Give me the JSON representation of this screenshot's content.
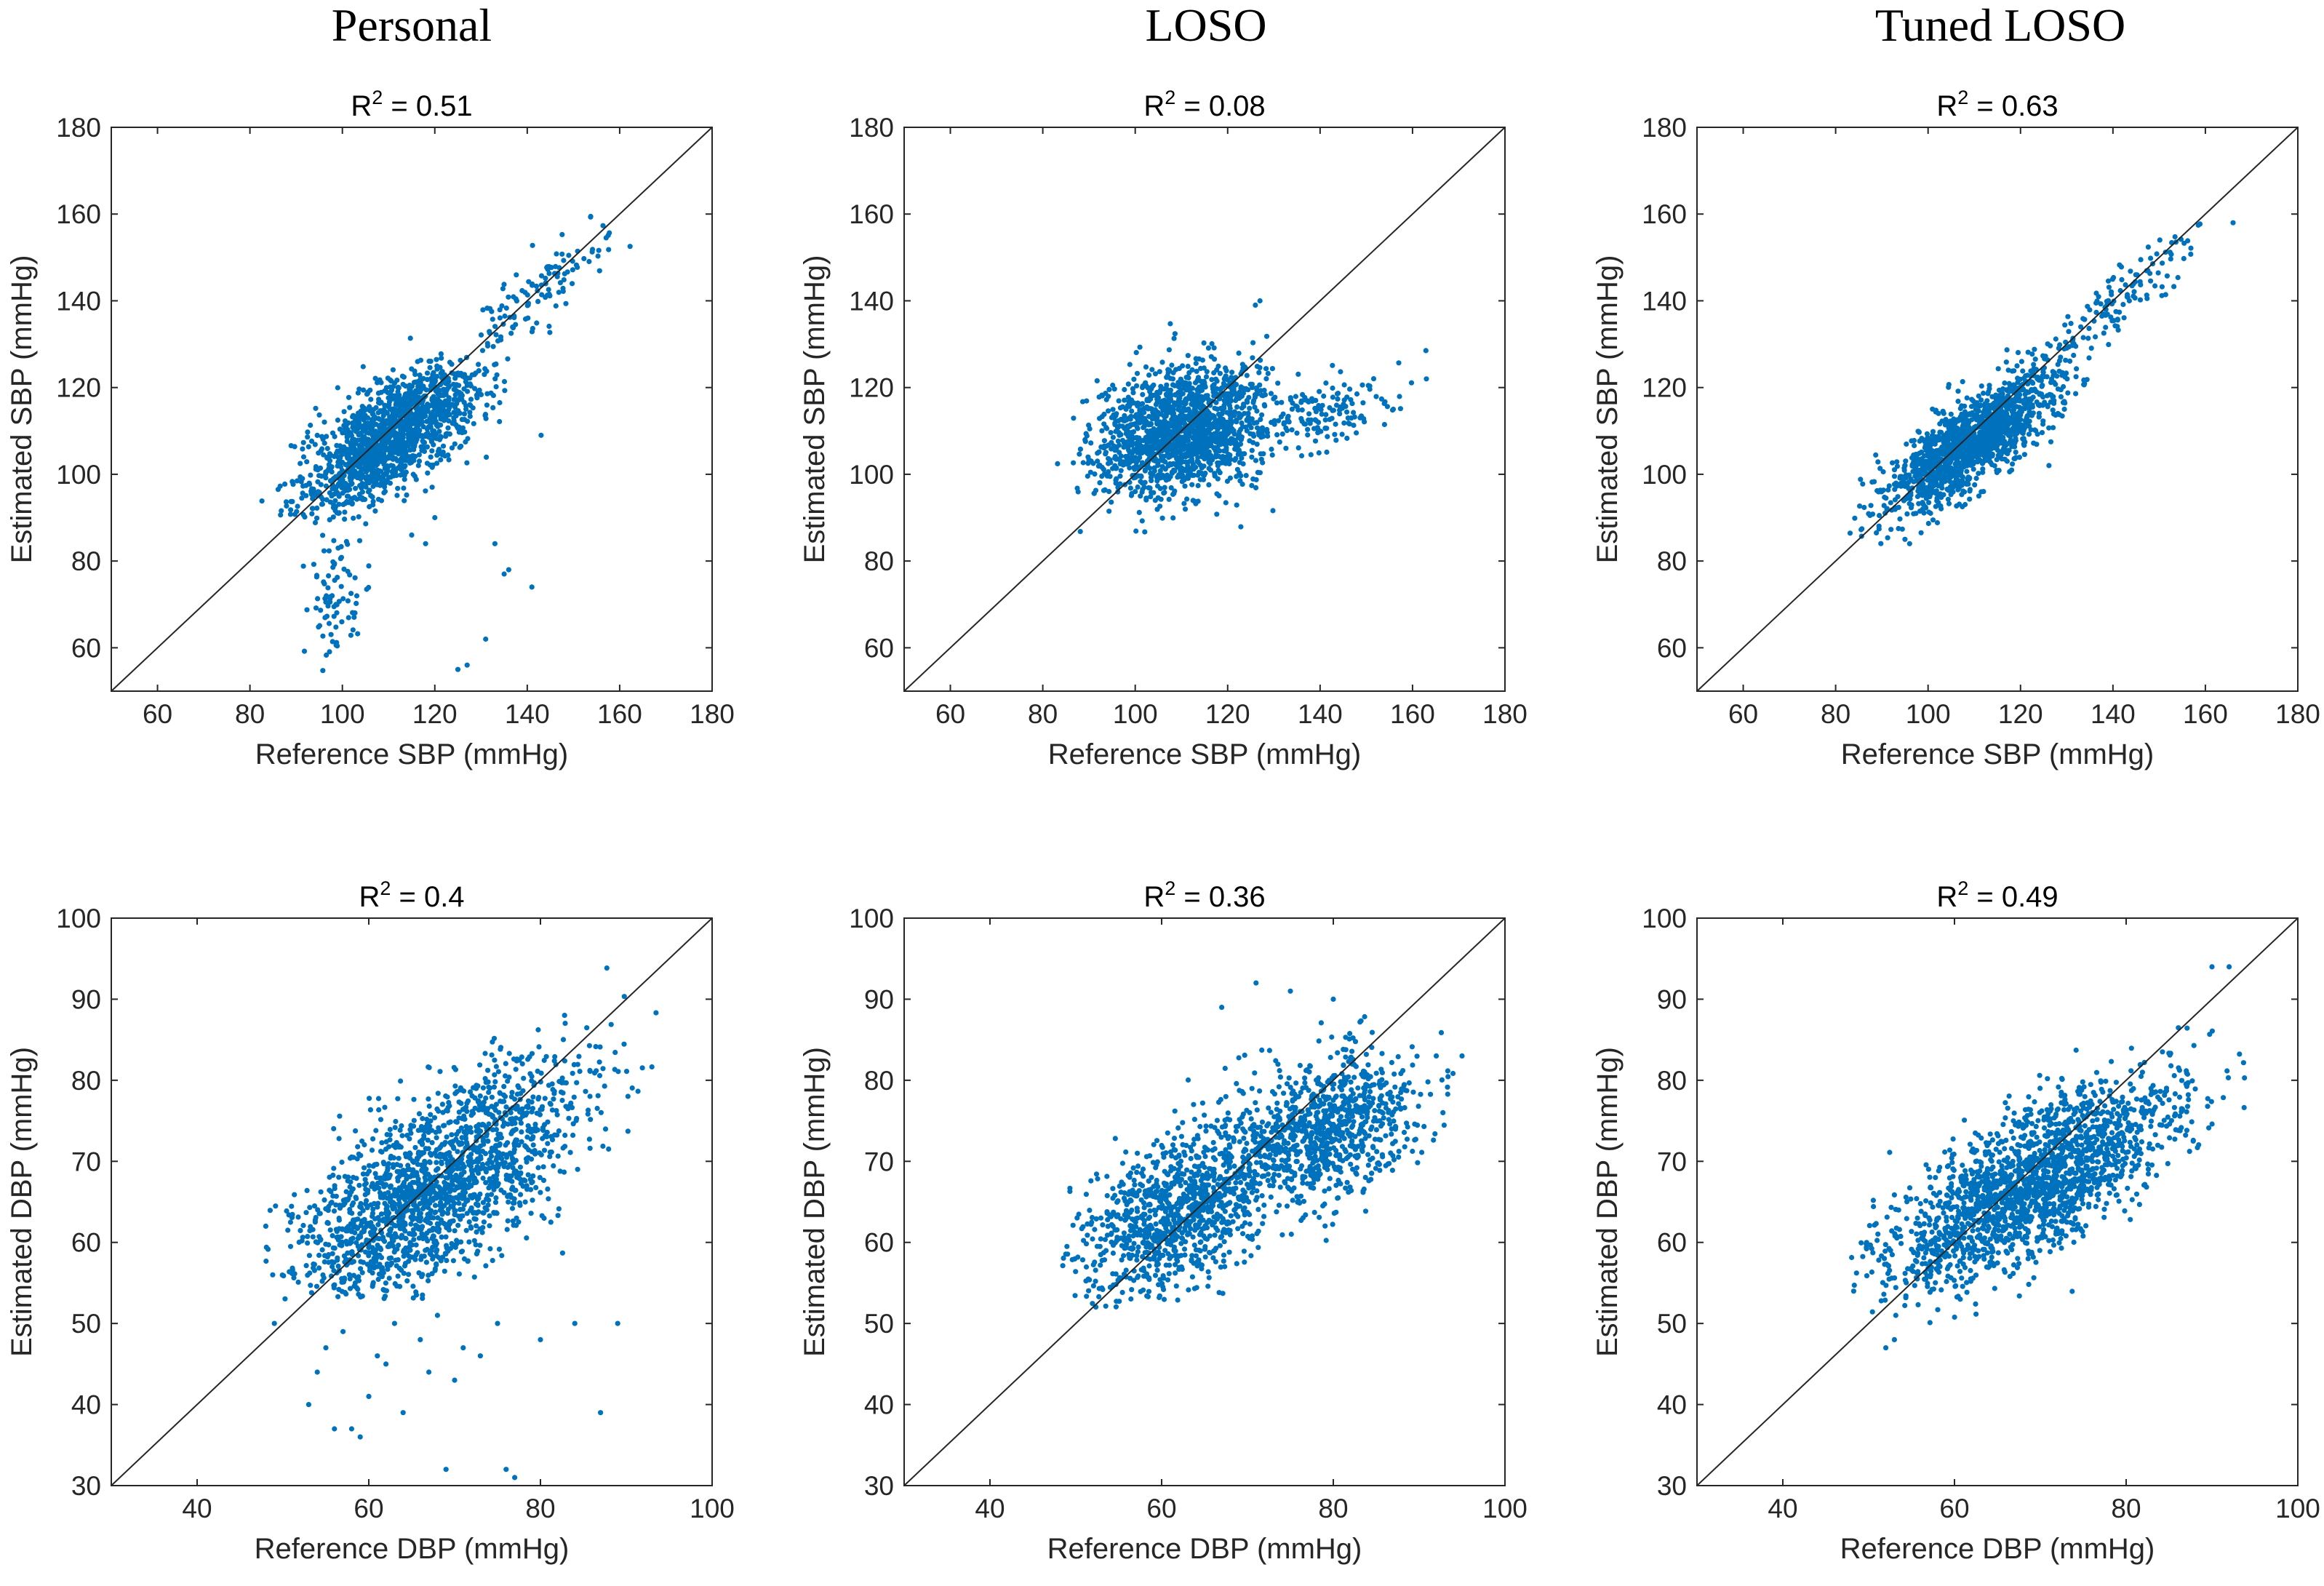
{
  "figure": {
    "column_titles": [
      "Personal",
      "LOSO",
      "Tuned LOSO"
    ],
    "point_color": "#0072bd",
    "line_color": "#262626"
  },
  "chart_data": [
    {
      "type": "scatter",
      "row": "SBP",
      "column": "Personal",
      "title": "R² = 0.51",
      "title_base": "R",
      "title_sup": "2",
      "title_rest": " = 0.51",
      "xlabel": "Reference SBP (mmHg)",
      "ylabel": "Estimated SBP (mmHg)",
      "xlim": [
        50,
        180
      ],
      "ylim": [
        50,
        180
      ],
      "xticks": [
        60,
        80,
        100,
        120,
        140,
        160,
        180
      ],
      "yticks": [
        60,
        80,
        100,
        120,
        140,
        160,
        180
      ],
      "identity_line": true,
      "r_squared": 0.51,
      "clusters": [
        {
          "cx": 111,
          "cy": 109,
          "sx": 9,
          "r": 0.62,
          "slope": 0.58,
          "sres": 6,
          "n": 1500,
          "xmin": 82,
          "xmax": 136,
          "ymin": 86,
          "ymax": 134
        },
        {
          "cx": 143,
          "cy": 143,
          "sx": 8,
          "r": 0.6,
          "slope": 0.8,
          "sres": 5,
          "n": 110,
          "xmin": 130,
          "xmax": 163,
          "ymin": 128,
          "ymax": 160
        },
        {
          "cx": 98,
          "cy": 72,
          "sx": 3,
          "r": 0.0,
          "slope": 0,
          "sres": 8,
          "n": 80,
          "xmin": 91,
          "xmax": 108,
          "ymin": 53,
          "ymax": 90
        }
      ],
      "outliers": [
        [
          127,
          56
        ],
        [
          125,
          55
        ],
        [
          131,
          62
        ],
        [
          135,
          77
        ],
        [
          136,
          78
        ],
        [
          141,
          74
        ],
        [
          133,
          84
        ],
        [
          118,
          84
        ],
        [
          143,
          109
        ],
        [
          120,
          90
        ],
        [
          115,
          86
        ]
      ]
    },
    {
      "type": "scatter",
      "row": "SBP",
      "column": "LOSO",
      "title": "R² = 0.08",
      "title_base": "R",
      "title_sup": "2",
      "title_rest": " = 0.08",
      "xlabel": "Reference SBP (mmHg)",
      "ylabel": "Estimated SBP (mmHg)",
      "xlim": [
        50,
        180
      ],
      "ylim": [
        50,
        180
      ],
      "xticks": [
        60,
        80,
        100,
        120,
        140,
        160,
        180
      ],
      "yticks": [
        60,
        80,
        100,
        120,
        140,
        160,
        180
      ],
      "identity_line": true,
      "r_squared": 0.08,
      "clusters": [
        {
          "cx": 110,
          "cy": 110,
          "sx": 9,
          "r": 0.25,
          "slope": 0.22,
          "sres": 7,
          "n": 1600,
          "xmin": 83,
          "xmax": 130,
          "ymin": 86,
          "ymax": 138
        },
        {
          "cx": 140,
          "cy": 114,
          "sx": 9,
          "r": 0.4,
          "slope": 0.2,
          "sres": 4,
          "n": 160,
          "xmin": 125,
          "xmax": 164,
          "ymin": 102,
          "ymax": 130
        }
      ],
      "outliers": [
        [
          127,
          140
        ],
        [
          126,
          139
        ],
        [
          163,
          122
        ]
      ]
    },
    {
      "type": "scatter",
      "row": "SBP",
      "column": "Tuned LOSO",
      "title": "R² = 0.63",
      "title_base": "R",
      "title_sup": "2",
      "title_rest": " = 0.63",
      "xlabel": "Reference SBP (mmHg)",
      "ylabel": "Estimated SBP (mmHg)",
      "xlim": [
        50,
        180
      ],
      "ylim": [
        50,
        180
      ],
      "xticks": [
        60,
        80,
        100,
        120,
        140,
        160,
        180
      ],
      "yticks": [
        60,
        80,
        100,
        120,
        140,
        160,
        180
      ],
      "identity_line": true,
      "r_squared": 0.63,
      "clusters": [
        {
          "cx": 110,
          "cy": 108,
          "sx": 9,
          "r": 0.78,
          "slope": 0.72,
          "sres": 5,
          "n": 1600,
          "xmin": 82,
          "xmax": 135,
          "ymin": 84,
          "ymax": 136
        },
        {
          "cx": 143,
          "cy": 142,
          "sx": 8,
          "r": 0.7,
          "slope": 0.85,
          "sres": 4,
          "n": 120,
          "xmin": 128,
          "xmax": 166,
          "ymin": 126,
          "ymax": 160
        }
      ],
      "outliers": [
        [
          96,
          84
        ],
        [
          95,
          85
        ],
        [
          166,
          158
        ]
      ]
    },
    {
      "type": "scatter",
      "row": "DBP",
      "column": "Personal",
      "title": "R² = 0.4",
      "title_base": "R",
      "title_sup": "2",
      "title_rest": " = 0.4",
      "xlabel": "Reference DBP (mmHg)",
      "ylabel": "Estimated DBP (mmHg)",
      "xlim": [
        30,
        100
      ],
      "ylim": [
        30,
        100
      ],
      "xticks": [
        40,
        60,
        80,
        100
      ],
      "yticks": [
        30,
        40,
        50,
        60,
        70,
        80,
        90,
        100
      ],
      "identity_line": true,
      "r_squared": 0.4,
      "clusters": [
        {
          "cx": 68,
          "cy": 67,
          "sx": 8.5,
          "r": 0.63,
          "slope": 0.6,
          "sres": 5.5,
          "n": 1800,
          "xmin": 48,
          "xmax": 94,
          "ymin": 53,
          "ymax": 94
        }
      ],
      "outliers": [
        [
          77,
          31
        ],
        [
          76,
          32
        ],
        [
          69,
          32
        ],
        [
          59,
          36
        ],
        [
          58,
          37
        ],
        [
          56,
          37
        ],
        [
          87,
          39
        ],
        [
          89,
          50
        ],
        [
          60,
          41
        ],
        [
          62,
          45
        ],
        [
          66,
          48
        ],
        [
          70,
          43
        ],
        [
          73,
          46
        ],
        [
          53,
          40
        ],
        [
          54,
          44
        ],
        [
          64,
          39
        ],
        [
          80,
          48
        ],
        [
          84,
          50
        ],
        [
          57,
          49
        ],
        [
          63,
          50
        ],
        [
          68,
          51
        ],
        [
          75,
          50
        ],
        [
          61,
          46
        ],
        [
          71,
          47
        ],
        [
          55,
          47
        ],
        [
          67,
          44
        ],
        [
          48,
          62
        ],
        [
          49,
          50
        ]
      ]
    },
    {
      "type": "scatter",
      "row": "DBP",
      "column": "LOSO",
      "title": "R² = 0.36",
      "title_base": "R",
      "title_sup": "2",
      "title_rest": " = 0.36",
      "xlabel": "Reference DBP (mmHg)",
      "ylabel": "Estimated DBP (mmHg)",
      "xlim": [
        30,
        100
      ],
      "ylim": [
        30,
        100
      ],
      "xticks": [
        40,
        60,
        80,
        100
      ],
      "yticks": [
        30,
        40,
        50,
        60,
        70,
        80,
        90,
        100
      ],
      "identity_line": true,
      "r_squared": 0.36,
      "clusters": [
        {
          "cx": 62,
          "cy": 64,
          "sx": 5.5,
          "r": 0.45,
          "slope": 0.4,
          "sres": 4.5,
          "n": 1000,
          "xmin": 48,
          "xmax": 80,
          "ymin": 52,
          "ymax": 82
        },
        {
          "cx": 79,
          "cy": 74,
          "sx": 5.5,
          "r": 0.3,
          "slope": 0.3,
          "sres": 4.5,
          "n": 900,
          "xmin": 64,
          "xmax": 95,
          "ymin": 60,
          "ymax": 90
        }
      ],
      "outliers": [
        [
          71,
          92
        ],
        [
          75,
          91
        ],
        [
          80,
          90
        ],
        [
          67,
          89
        ],
        [
          95,
          83
        ],
        [
          92,
          83
        ]
      ]
    },
    {
      "type": "scatter",
      "row": "DBP",
      "column": "Tuned LOSO",
      "title": "R² = 0.49",
      "title_base": "R",
      "title_sup": "2",
      "title_rest": " = 0.49",
      "xlabel": "Reference DBP (mmHg)",
      "ylabel": "Estimated DBP (mmHg)",
      "xlim": [
        30,
        100
      ],
      "ylim": [
        30,
        100
      ],
      "xticks": [
        40,
        60,
        80,
        100
      ],
      "yticks": [
        30,
        40,
        50,
        60,
        70,
        80,
        90,
        100
      ],
      "identity_line": true,
      "r_squared": 0.49,
      "clusters": [
        {
          "cx": 69,
          "cy": 67,
          "sx": 8.5,
          "r": 0.7,
          "slope": 0.55,
          "sres": 4.5,
          "n": 1900,
          "xmin": 48,
          "xmax": 95,
          "ymin": 50,
          "ymax": 94
        }
      ],
      "outliers": [
        [
          52,
          47
        ],
        [
          53,
          48
        ],
        [
          92,
          94
        ],
        [
          90,
          94
        ]
      ]
    }
  ]
}
